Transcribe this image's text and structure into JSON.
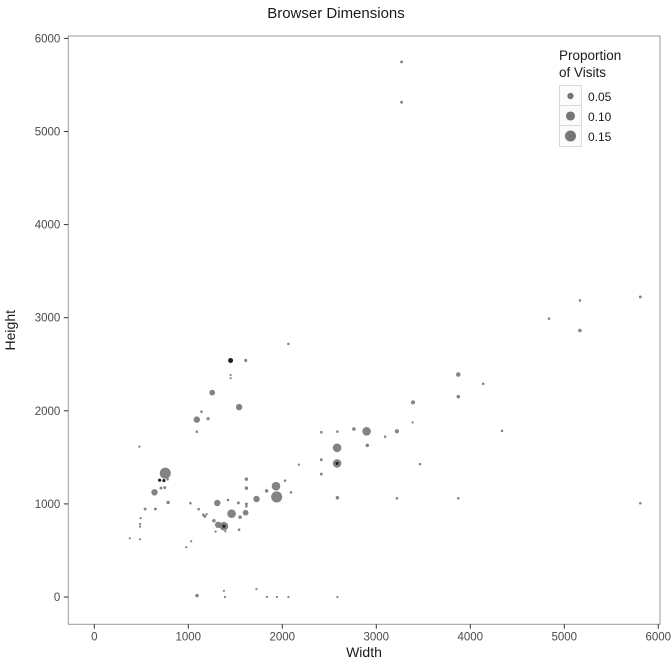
{
  "title": "Browser Dimensions",
  "colors": {
    "background": "#ffffff",
    "point": "#767676",
    "point_dark": "#1f1f1f",
    "panel_border": "#9a9a9a",
    "tick": "#333333",
    "tick_label": "#4a4a4a",
    "text": "#1a1a1a",
    "legend_key_bg": "#fbfbfb",
    "legend_key_border": "#d9d9d9"
  },
  "chart_data": {
    "type": "scatter",
    "subtype": "bubble",
    "title": "Browser Dimensions",
    "xlabel": "Width",
    "ylabel": "Height",
    "xlim": [
      0,
      6000
    ],
    "ylim": [
      0,
      6000
    ],
    "x_ticks": [
      0,
      1000,
      2000,
      3000,
      4000,
      5000,
      6000
    ],
    "y_ticks": [
      0,
      1000,
      2000,
      3000,
      4000,
      5000,
      6000
    ],
    "grid": false,
    "legend": {
      "title": "Proportion of Visits",
      "title_lines": [
        "Proportion",
        "of Visits"
      ],
      "position": "inside-top-right",
      "entries": [
        {
          "label": "0.05",
          "value": 0.05
        },
        {
          "label": "0.10",
          "value": 0.1
        },
        {
          "label": "0.15",
          "value": 0.15
        }
      ]
    },
    "size_encoding": "Proportion of Visits",
    "points": [
      {
        "x": 3269,
        "y": 5748,
        "s": 0.01
      },
      {
        "x": 3269,
        "y": 5315,
        "s": 0.01
      },
      {
        "x": 5809,
        "y": 3223,
        "s": 0.01
      },
      {
        "x": 5166,
        "y": 3186,
        "s": 0.008
      },
      {
        "x": 4837,
        "y": 2990,
        "s": 0.008
      },
      {
        "x": 5166,
        "y": 2862,
        "s": 0.015
      },
      {
        "x": 2065,
        "y": 2719,
        "s": 0.008
      },
      {
        "x": 1450,
        "y": 2540,
        "s": 0.03,
        "dark": true
      },
      {
        "x": 1611,
        "y": 2540,
        "s": 0.012
      },
      {
        "x": 1450,
        "y": 2385,
        "s": 0.006
      },
      {
        "x": 1450,
        "y": 2350,
        "s": 0.006
      },
      {
        "x": 1254,
        "y": 2195,
        "s": 0.04
      },
      {
        "x": 1540,
        "y": 2040,
        "s": 0.05
      },
      {
        "x": 1140,
        "y": 1990,
        "s": 0.008
      },
      {
        "x": 1090,
        "y": 1905,
        "s": 0.05
      },
      {
        "x": 1211,
        "y": 1915,
        "s": 0.012
      },
      {
        "x": 1090,
        "y": 1775,
        "s": 0.008
      },
      {
        "x": 3872,
        "y": 2390,
        "s": 0.025
      },
      {
        "x": 4137,
        "y": 2290,
        "s": 0.008
      },
      {
        "x": 3872,
        "y": 2152,
        "s": 0.015
      },
      {
        "x": 3390,
        "y": 2090,
        "s": 0.02
      },
      {
        "x": 3386,
        "y": 1875,
        "s": 0.006
      },
      {
        "x": 2415,
        "y": 1770,
        "s": 0.008
      },
      {
        "x": 2586,
        "y": 1777,
        "s": 0.008
      },
      {
        "x": 2762,
        "y": 1805,
        "s": 0.015
      },
      {
        "x": 2897,
        "y": 1780,
        "s": 0.09
      },
      {
        "x": 3094,
        "y": 1723,
        "s": 0.008
      },
      {
        "x": 3219,
        "y": 1780,
        "s": 0.02
      },
      {
        "x": 4337,
        "y": 1784,
        "s": 0.008
      },
      {
        "x": 2583,
        "y": 1603,
        "s": 0.09
      },
      {
        "x": 2904,
        "y": 1628,
        "s": 0.015
      },
      {
        "x": 2583,
        "y": 1435,
        "s": 0.09
      },
      {
        "x": 2583,
        "y": 1435,
        "s": 0.012,
        "dark": true
      },
      {
        "x": 2415,
        "y": 1475,
        "s": 0.01
      },
      {
        "x": 2415,
        "y": 1320,
        "s": 0.01
      },
      {
        "x": 2176,
        "y": 1422,
        "s": 0.006
      },
      {
        "x": 3465,
        "y": 1428,
        "s": 0.008
      },
      {
        "x": 2586,
        "y": 1067,
        "s": 0.015
      },
      {
        "x": 3219,
        "y": 1060,
        "s": 0.008
      },
      {
        "x": 3872,
        "y": 1060,
        "s": 0.008
      },
      {
        "x": 5809,
        "y": 1007,
        "s": 0.008
      },
      {
        "x": 480,
        "y": 1615,
        "s": 0.006
      },
      {
        "x": 755,
        "y": 1330,
        "s": 0.15
      },
      {
        "x": 695,
        "y": 1255,
        "s": 0.012,
        "dark": true
      },
      {
        "x": 740,
        "y": 1250,
        "s": 0.012,
        "dark": true
      },
      {
        "x": 780,
        "y": 1265,
        "s": 0.008
      },
      {
        "x": 710,
        "y": 1170,
        "s": 0.01
      },
      {
        "x": 750,
        "y": 1175,
        "s": 0.01
      },
      {
        "x": 640,
        "y": 1125,
        "s": 0.05
      },
      {
        "x": 785,
        "y": 1015,
        "s": 0.015
      },
      {
        "x": 1022,
        "y": 1007,
        "s": 0.008
      },
      {
        "x": 1111,
        "y": 944,
        "s": 0.008
      },
      {
        "x": 1158,
        "y": 883,
        "s": 0.008
      },
      {
        "x": 540,
        "y": 945,
        "s": 0.01
      },
      {
        "x": 650,
        "y": 945,
        "s": 0.01
      },
      {
        "x": 493,
        "y": 848,
        "s": 0.006
      },
      {
        "x": 487,
        "y": 784,
        "s": 0.006
      },
      {
        "x": 487,
        "y": 756,
        "s": 0.006
      },
      {
        "x": 378,
        "y": 630,
        "s": 0.006
      },
      {
        "x": 487,
        "y": 620,
        "s": 0.006
      },
      {
        "x": 978,
        "y": 535,
        "s": 0.006
      },
      {
        "x": 1031,
        "y": 599,
        "s": 0.006
      },
      {
        "x": 1308,
        "y": 1010,
        "s": 0.05
      },
      {
        "x": 1422,
        "y": 1042,
        "s": 0.008
      },
      {
        "x": 1533,
        "y": 1011,
        "s": 0.01
      },
      {
        "x": 1618,
        "y": 1000,
        "s": 0.01
      },
      {
        "x": 1618,
        "y": 975,
        "s": 0.008
      },
      {
        "x": 1176,
        "y": 868,
        "s": 0.012
      },
      {
        "x": 1196,
        "y": 890,
        "s": 0.006
      },
      {
        "x": 1272,
        "y": 820,
        "s": 0.015
      },
      {
        "x": 1318,
        "y": 775,
        "s": 0.05
      },
      {
        "x": 1379,
        "y": 760,
        "s": 0.09
      },
      {
        "x": 1379,
        "y": 760,
        "s": 0.012,
        "dark": true
      },
      {
        "x": 1461,
        "y": 895,
        "s": 0.09
      },
      {
        "x": 1551,
        "y": 858,
        "s": 0.015
      },
      {
        "x": 1610,
        "y": 905,
        "s": 0.04
      },
      {
        "x": 1540,
        "y": 723,
        "s": 0.008
      },
      {
        "x": 1290,
        "y": 703,
        "s": 0.006
      },
      {
        "x": 1395,
        "y": 706,
        "s": 0.006
      },
      {
        "x": 1618,
        "y": 1266,
        "s": 0.015
      },
      {
        "x": 1618,
        "y": 1170,
        "s": 0.015
      },
      {
        "x": 1833,
        "y": 1140,
        "s": 0.015
      },
      {
        "x": 1933,
        "y": 1190,
        "s": 0.09
      },
      {
        "x": 1940,
        "y": 1075,
        "s": 0.15
      },
      {
        "x": 2029,
        "y": 1250,
        "s": 0.008
      },
      {
        "x": 2093,
        "y": 1124,
        "s": 0.008
      },
      {
        "x": 1726,
        "y": 1053,
        "s": 0.05
      },
      {
        "x": 1093,
        "y": 15,
        "s": 0.015
      },
      {
        "x": 1379,
        "y": 67,
        "s": 0.006
      },
      {
        "x": 1390,
        "y": 0,
        "s": 0.006
      },
      {
        "x": 1725,
        "y": 85,
        "s": 0.006
      },
      {
        "x": 1836,
        "y": 0,
        "s": 0.006
      },
      {
        "x": 1943,
        "y": 0,
        "s": 0.006
      },
      {
        "x": 2065,
        "y": 0,
        "s": 0.006
      },
      {
        "x": 2586,
        "y": 0,
        "s": 0.006
      }
    ]
  }
}
